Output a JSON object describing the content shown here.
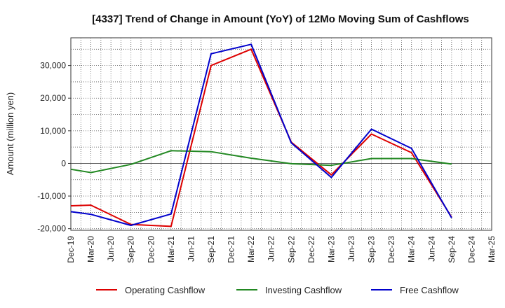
{
  "chart_data": {
    "type": "line",
    "title": "[4337]  Trend of Change in Amount (YoY) of 12Mo Moving Sum of Cashflows",
    "xlabel": "",
    "ylabel": "Amount (million yen)",
    "ylim": [
      -20500,
      38500
    ],
    "yticks": [
      -20000,
      -10000,
      0,
      10000,
      20000,
      30000
    ],
    "ytick_labels": [
      "-20,000",
      "-10,000",
      "0",
      "10,000",
      "20,000",
      "30,000"
    ],
    "categories": [
      "Dec-19",
      "Mar-20",
      "Jun-20",
      "Sep-20",
      "Dec-20",
      "Mar-21",
      "Jun-21",
      "Sep-21",
      "Dec-21",
      "Mar-22",
      "Jun-22",
      "Sep-22",
      "Dec-22",
      "Mar-23",
      "Jun-23",
      "Sep-23",
      "Dec-23",
      "Mar-24",
      "Jun-24",
      "Sep-24",
      "Dec-24",
      "Mar-25"
    ],
    "series": [
      {
        "name": "Operating Cashflow",
        "color": "#dd0000",
        "values": [
          -13000,
          -12800,
          null,
          -18700,
          null,
          -19300,
          null,
          30000,
          null,
          35000,
          null,
          6500,
          null,
          -3500,
          null,
          9000,
          null,
          3300,
          null,
          -16500,
          null,
          null
        ]
      },
      {
        "name": "Investing Cashflow",
        "color": "#228822",
        "values": [
          -1800,
          -2800,
          null,
          -300,
          null,
          3900,
          null,
          3600,
          null,
          1600,
          null,
          -100,
          null,
          -600,
          null,
          1500,
          null,
          1500,
          null,
          -200,
          null,
          null
        ]
      },
      {
        "name": "Free Cashflow",
        "color": "#0000cc",
        "values": [
          -14800,
          -15600,
          null,
          -19000,
          null,
          -15500,
          null,
          33600,
          null,
          36500,
          null,
          6300,
          null,
          -4300,
          null,
          10500,
          null,
          4600,
          null,
          -16700,
          null,
          null
        ]
      }
    ],
    "legend_position": "bottom",
    "grid": true
  }
}
